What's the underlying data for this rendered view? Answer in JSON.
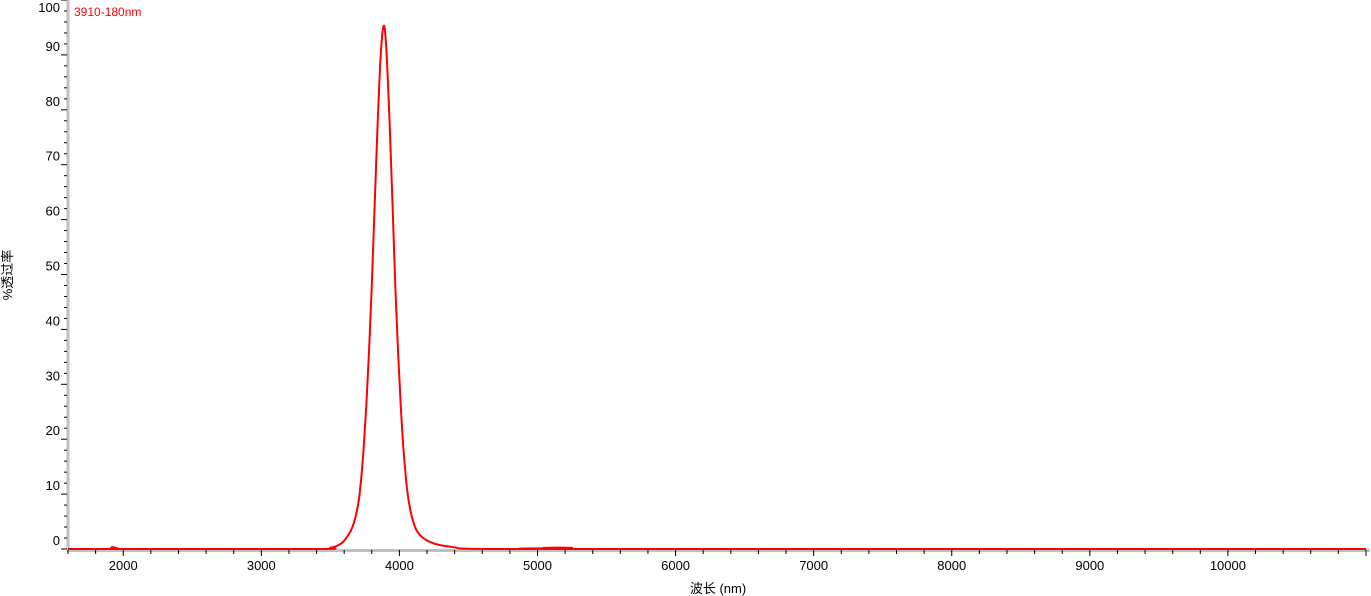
{
  "chart_data": {
    "type": "line",
    "title": "",
    "xlabel": "波长 (nm)",
    "ylabel": "%透过率",
    "xlim": [
      1600,
      11000
    ],
    "ylim": [
      0,
      100
    ],
    "x_ticks": [
      2000,
      3000,
      4000,
      5000,
      6000,
      7000,
      8000,
      9000,
      10000
    ],
    "y_ticks": [
      0,
      10,
      20,
      30,
      40,
      50,
      60,
      70,
      80,
      90,
      100
    ],
    "grid": false,
    "legend": "top-left",
    "colors": {
      "series": "#ff0000",
      "axis": "#c0c0c0"
    },
    "series": [
      {
        "name": "3910-180nm",
        "points": [
          [
            1600,
            0
          ],
          [
            1880,
            0
          ],
          [
            1920,
            0.35
          ],
          [
            1960,
            0.1
          ],
          [
            2000,
            0
          ],
          [
            3400,
            0
          ],
          [
            3500,
            0.2
          ],
          [
            3550,
            0.6
          ],
          [
            3600,
            1.5
          ],
          [
            3660,
            4
          ],
          [
            3700,
            8
          ],
          [
            3720,
            12
          ],
          [
            3740,
            18
          ],
          [
            3760,
            26
          ],
          [
            3780,
            36
          ],
          [
            3800,
            48
          ],
          [
            3820,
            62
          ],
          [
            3840,
            76
          ],
          [
            3860,
            88
          ],
          [
            3875,
            93.5
          ],
          [
            3885,
            95.2
          ],
          [
            3895,
            94.5
          ],
          [
            3910,
            89
          ],
          [
            3930,
            77
          ],
          [
            3950,
            63
          ],
          [
            3970,
            48
          ],
          [
            3990,
            36
          ],
          [
            4010,
            26
          ],
          [
            4030,
            18
          ],
          [
            4060,
            10
          ],
          [
            4100,
            5
          ],
          [
            4150,
            2.5
          ],
          [
            4250,
            1
          ],
          [
            4400,
            0.3
          ],
          [
            4500,
            0.05
          ],
          [
            5000,
            0
          ],
          [
            5050,
            0.2
          ],
          [
            5250,
            0.2
          ],
          [
            5300,
            0
          ],
          [
            11000,
            0
          ]
        ]
      }
    ]
  }
}
